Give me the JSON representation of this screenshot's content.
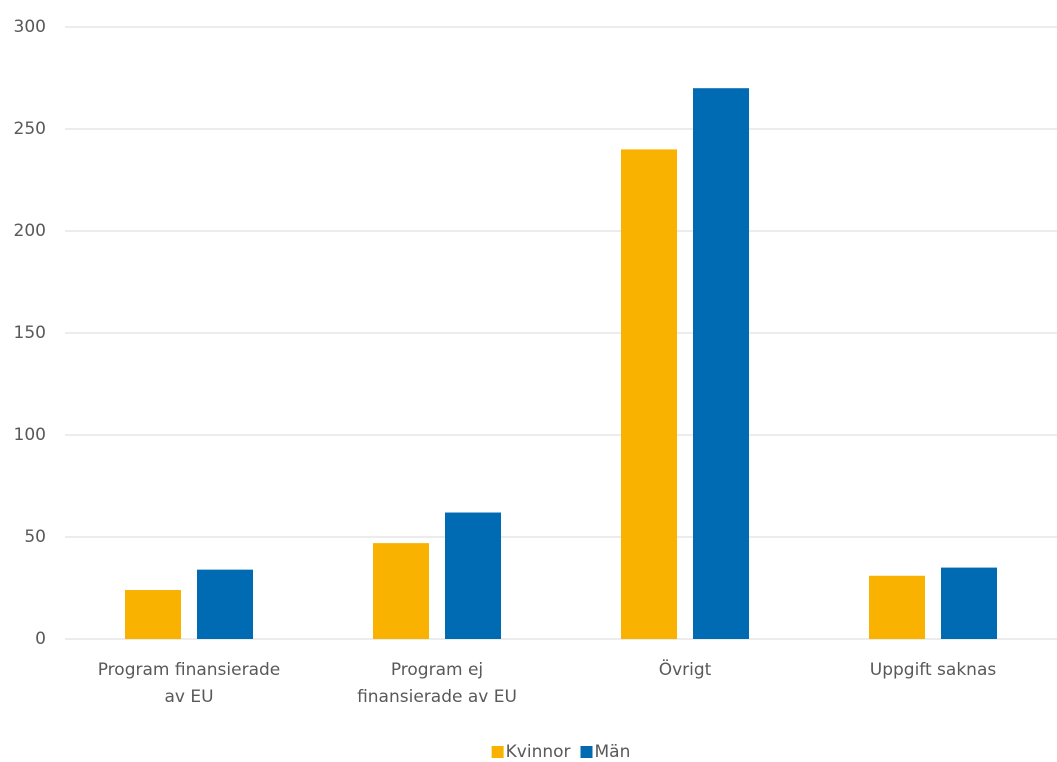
{
  "chart_data": {
    "type": "bar",
    "categories": [
      "Program finansierade av EU",
      "Program ej finansierade av EU",
      "Övrigt",
      "Uppgift saknas"
    ],
    "series": [
      {
        "name": "Kvinnor",
        "color": "#f9b200",
        "values": [
          24,
          47,
          240,
          31
        ]
      },
      {
        "name": "Män",
        "color": "#006ab3",
        "values": [
          34,
          62,
          270,
          35
        ]
      }
    ],
    "ylim": [
      0,
      300
    ],
    "yticks": [
      0,
      50,
      100,
      150,
      200,
      250,
      300
    ],
    "grid": true,
    "legend": "bottom"
  }
}
